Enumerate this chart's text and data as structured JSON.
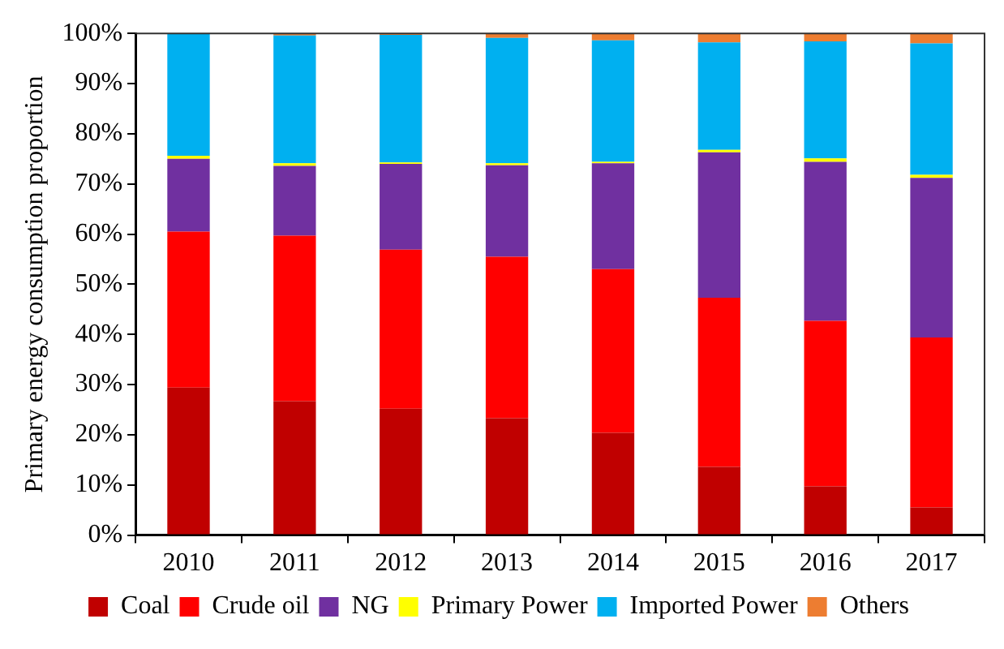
{
  "chart_data": {
    "type": "bar",
    "stacked": true,
    "ylabel": "Primary energy consumption proportion",
    "categories": [
      "2010",
      "2011",
      "2012",
      "2013",
      "2014",
      "2015",
      "2016",
      "2017"
    ],
    "series": [
      {
        "name": "Coal",
        "color": "#c00000",
        "values": [
          29.4,
          26.7,
          25.2,
          23.3,
          20.4,
          13.6,
          9.7,
          5.5
        ]
      },
      {
        "name": "Crude oil",
        "color": "#ff0000",
        "values": [
          31.1,
          33.0,
          31.7,
          32.2,
          32.6,
          33.7,
          33.0,
          33.9
        ]
      },
      {
        "name": "NG",
        "color": "#7030a0",
        "values": [
          14.5,
          13.9,
          17.1,
          18.2,
          21.1,
          29.0,
          31.7,
          31.8
        ]
      },
      {
        "name": "Primary Power",
        "color": "#ffff00",
        "values": [
          0.6,
          0.5,
          0.3,
          0.4,
          0.3,
          0.5,
          0.7,
          0.6
        ]
      },
      {
        "name": "Imported Power",
        "color": "#00b0f0",
        "values": [
          24.4,
          25.5,
          25.4,
          25.0,
          24.2,
          21.4,
          23.3,
          26.2
        ]
      },
      {
        "name": "Others",
        "color": "#ed7d31",
        "values": [
          0,
          0.4,
          0.3,
          0.9,
          1.4,
          1.8,
          1.6,
          2.0
        ]
      }
    ],
    "ylim": [
      0,
      100
    ],
    "yticks": [
      {
        "value": 0,
        "label": "0%"
      },
      {
        "value": 10,
        "label": "10%"
      },
      {
        "value": 20,
        "label": "20%"
      },
      {
        "value": 30,
        "label": "30%"
      },
      {
        "value": 40,
        "label": "40%"
      },
      {
        "value": 50,
        "label": "50%"
      },
      {
        "value": 60,
        "label": "60%"
      },
      {
        "value": 70,
        "label": "70%"
      },
      {
        "value": 80,
        "label": "80%"
      },
      {
        "value": 90,
        "label": "90%"
      },
      {
        "value": 100,
        "label": "100%"
      }
    ],
    "grid": false,
    "legend": "bottom"
  }
}
